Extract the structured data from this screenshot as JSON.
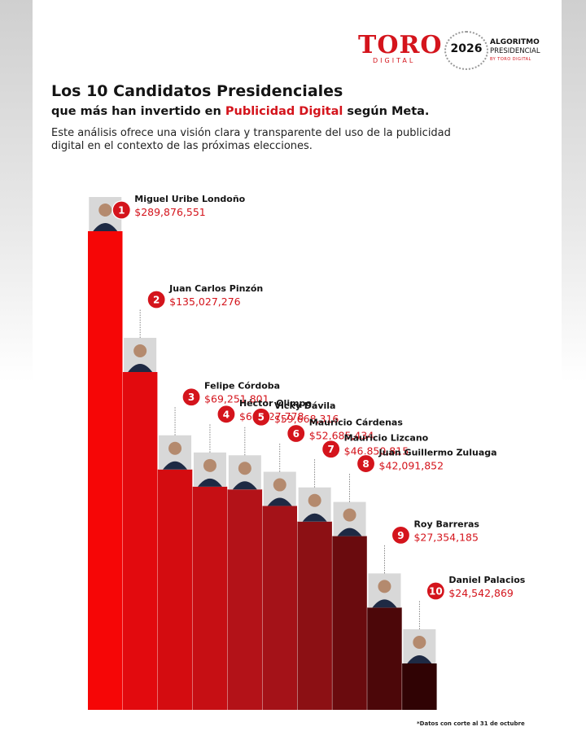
{
  "brand": {
    "logo_main": "TORO",
    "logo_sub": "DIGITAL",
    "seal_year": "2026",
    "algo_line1": "ALGORITMO",
    "algo_line2": "PRESIDENCIAL",
    "algo_line3": "BY TORO DIGITAL"
  },
  "header": {
    "title": "Los 10 Candidatos Presidenciales",
    "subtitle_pre": "que más han invertido en ",
    "subtitle_highlight": "Publicidad Digital",
    "subtitle_post": " según Meta.",
    "description": "Este análisis ofrece una visión clara y transparente del uso de la publicidad digital en el contexto de las próximas elecciones."
  },
  "footnote": "*Datos con corte al 31 de octubre",
  "colors": {
    "accent": "#d4141c",
    "bars": [
      "#f60606",
      "#e20a0e",
      "#d40c10",
      "#c60f14",
      "#b31218",
      "#a41218",
      "#8c1014",
      "#6a0b0e",
      "#4c0709",
      "#300304"
    ]
  },
  "chart_data": {
    "type": "bar",
    "title": "Los 10 Candidatos Presidenciales",
    "categories": [
      "1",
      "2",
      "3",
      "4",
      "5",
      "6",
      "7",
      "8",
      "9",
      "10"
    ],
    "candidates": [
      {
        "rank": "1",
        "name": "Miguel Uribe Londoño",
        "amount": "$289,876,551",
        "value": 289876551
      },
      {
        "rank": "2",
        "name": "Juan Carlos Pinzón",
        "amount": "$135,027,276",
        "value": 135027276
      },
      {
        "rank": "3",
        "name": "Felipe Córdoba",
        "amount": "$69,251,801",
        "value": 69251801
      },
      {
        "rank": "4",
        "name": "Héctor Olimpo",
        "amount": "$60,927,778",
        "value": 60927778
      },
      {
        "rank": "5",
        "name": "Vicky Dávila",
        "amount": "$59,668,316",
        "value": 59668316
      },
      {
        "rank": "6",
        "name": "Mauricio Cárdenas",
        "amount": "$52,685,434",
        "value": 52685434
      },
      {
        "rank": "7",
        "name": "Mauricio Lizcano",
        "amount": "$46,850,815",
        "value": 46850815
      },
      {
        "rank": "8",
        "name": "Juan Guillermo Zuluaga",
        "amount": "$42,091,852",
        "value": 42091852
      },
      {
        "rank": "9",
        "name": "Roy Barreras",
        "amount": "$27,354,185",
        "value": 27354185
      },
      {
        "rank": "10",
        "name": "Daniel Palacios",
        "amount": "$24,542,869",
        "value": 24542869
      }
    ],
    "xlabel": "",
    "ylabel": "",
    "grid": false,
    "legend": "none"
  }
}
